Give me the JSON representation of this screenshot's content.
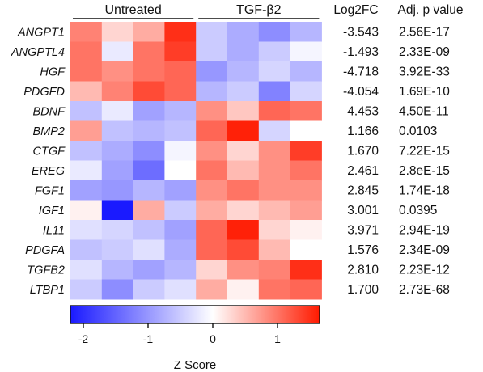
{
  "chart_data": {
    "type": "heatmap",
    "groups": [
      {
        "name": "Untreated",
        "columns": 4
      },
      {
        "name": "TGF-β2",
        "columns": 4
      }
    ],
    "column_headers": [
      "Log2FC",
      "Adj. p value"
    ],
    "rows": [
      {
        "gene": "ANGPT1",
        "log2fc": "-3.543",
        "padj": "2.56E-17",
        "z": [
          0.9,
          0.3,
          0.6,
          1.5,
          -0.5,
          -0.8,
          -1.1,
          -0.7
        ]
      },
      {
        "gene": "ANGPTL4",
        "log2fc": "-1.493",
        "padj": "2.33E-09",
        "z": [
          1.0,
          -0.2,
          1.0,
          1.4,
          -0.5,
          -0.8,
          -0.5,
          -0.1
        ]
      },
      {
        "gene": "HGF",
        "log2fc": "-4.718",
        "padj": "3.92E-33",
        "z": [
          1.0,
          0.8,
          1.0,
          1.1,
          -1.0,
          -0.7,
          -0.4,
          -0.7
        ]
      },
      {
        "gene": "PDGFD",
        "log2fc": "-4.054",
        "padj": "1.69E-10",
        "z": [
          0.5,
          0.9,
          1.3,
          1.1,
          -0.7,
          -0.5,
          -1.2,
          -0.4
        ]
      },
      {
        "gene": "BDNF",
        "log2fc": "4.453",
        "padj": "4.50E-11",
        "z": [
          -0.6,
          -0.2,
          -0.9,
          -0.7,
          0.8,
          0.4,
          1.1,
          1.0
        ]
      },
      {
        "gene": "BMP2",
        "log2fc": "1.166",
        "padj": "0.0103",
        "z": [
          0.7,
          -0.6,
          -0.7,
          -0.6,
          1.1,
          1.6,
          -0.4,
          0.0
        ]
      },
      {
        "gene": "CTGF",
        "log2fc": "1.670",
        "padj": "7.22E-15",
        "z": [
          -0.6,
          -0.8,
          -1.1,
          -0.1,
          0.8,
          0.3,
          0.8,
          1.4
        ]
      },
      {
        "gene": "EREG",
        "log2fc": "2.461",
        "padj": "2.8eE-15",
        "z": [
          -0.2,
          -0.9,
          -1.4,
          0.0,
          1.0,
          0.5,
          0.8,
          1.0
        ]
      },
      {
        "gene": "FGF1",
        "log2fc": "2.845",
        "padj": "1.74E-18",
        "z": [
          -0.9,
          -1.0,
          -0.7,
          -0.9,
          0.8,
          1.0,
          0.8,
          0.8
        ]
      },
      {
        "gene": "IGF1",
        "log2fc": "3.001",
        "padj": "0.0395",
        "z": [
          0.1,
          -2.2,
          0.6,
          -0.5,
          0.6,
          0.3,
          0.5,
          0.7
        ]
      },
      {
        "gene": "IL11",
        "log2fc": "3.971",
        "padj": "2.94E-19",
        "z": [
          -0.3,
          -0.4,
          -0.6,
          -0.9,
          1.1,
          1.6,
          0.3,
          0.1
        ]
      },
      {
        "gene": "PDGFA",
        "log2fc": "1.576",
        "padj": "2.34E-09",
        "z": [
          -0.6,
          -0.5,
          -0.3,
          -0.8,
          1.1,
          1.3,
          0.5,
          0.0
        ]
      },
      {
        "gene": "TGFB2",
        "log2fc": "2.810",
        "padj": "2.23E-12",
        "z": [
          -0.3,
          -0.7,
          -0.9,
          -0.7,
          0.3,
          0.8,
          0.9,
          1.5
        ]
      },
      {
        "gene": "LTBP1",
        "log2fc": "1.700",
        "padj": "2.73E-68",
        "z": [
          -0.5,
          -1.1,
          -0.5,
          -0.3,
          0.6,
          0.1,
          1.0,
          1.1
        ]
      }
    ],
    "colorbar": {
      "label": "Z Score",
      "range": [
        -2.2,
        1.65
      ],
      "ticks": [
        -2,
        -1,
        0,
        1
      ],
      "tick_labels": [
        "-2",
        "-1",
        "0",
        "1"
      ],
      "colors": {
        "low": "#1a1aff",
        "mid": "#ffffff",
        "high": "#ff1a00"
      }
    }
  }
}
